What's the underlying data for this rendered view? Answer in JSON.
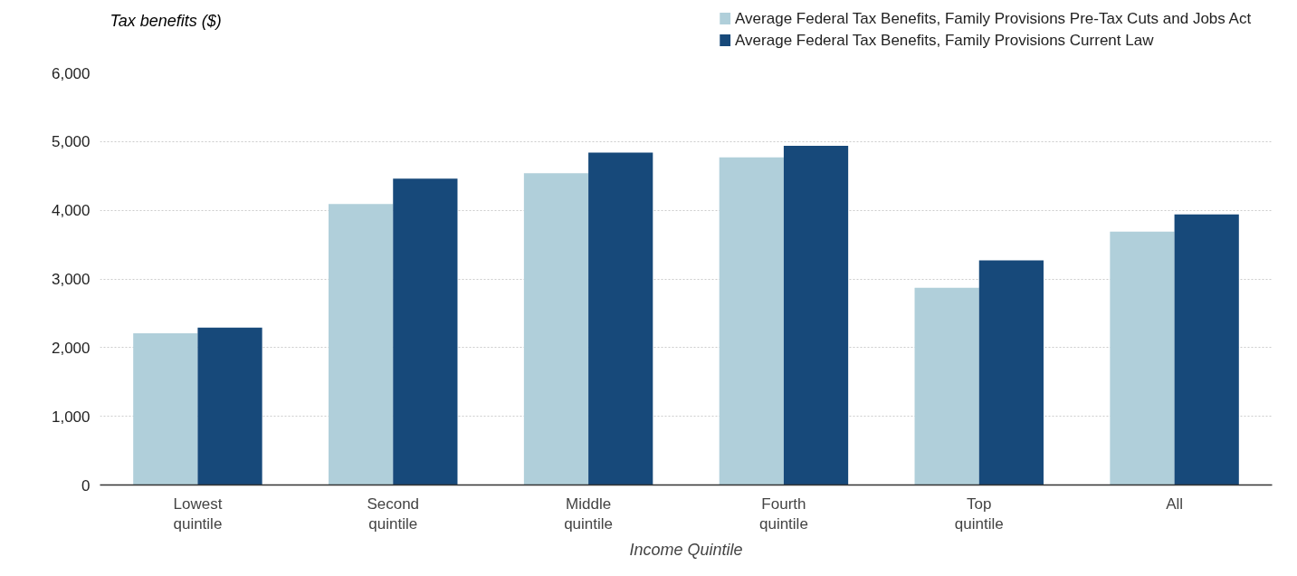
{
  "chart_data": {
    "type": "bar",
    "categories": [
      "Lowest\nquintile",
      "Second\nquintile",
      "Middle\nquintile",
      "Fourth\nquintile",
      "Top\nquintile",
      "All"
    ],
    "series": [
      {
        "name": "Average Federal Tax Benefits, Family Provisions Pre-Tax Cuts and Jobs Act",
        "color": "#b0cfda",
        "values": [
          2210,
          4090,
          4540,
          4770,
          2870,
          3690
        ]
      },
      {
        "name": "Average Federal Tax Benefits, Family Provisions Current Law",
        "color": "#17497a",
        "values": [
          2290,
          4460,
          4840,
          4940,
          3270,
          3940
        ]
      }
    ],
    "xlabel": "Income Quintile",
    "ylabel": "Tax benefits ($)",
    "ylim": [
      0,
      6000
    ],
    "yticks": [
      {
        "value": 0,
        "label": "0"
      },
      {
        "value": 1000,
        "label": "1,000"
      },
      {
        "value": 2000,
        "label": "2,000"
      },
      {
        "value": 3000,
        "label": "3,000"
      },
      {
        "value": 4000,
        "label": "4,000"
      },
      {
        "value": 5000,
        "label": "5,000"
      },
      {
        "value": 6000,
        "label": "6,000"
      }
    ],
    "grid": "y",
    "legend": "top right"
  }
}
